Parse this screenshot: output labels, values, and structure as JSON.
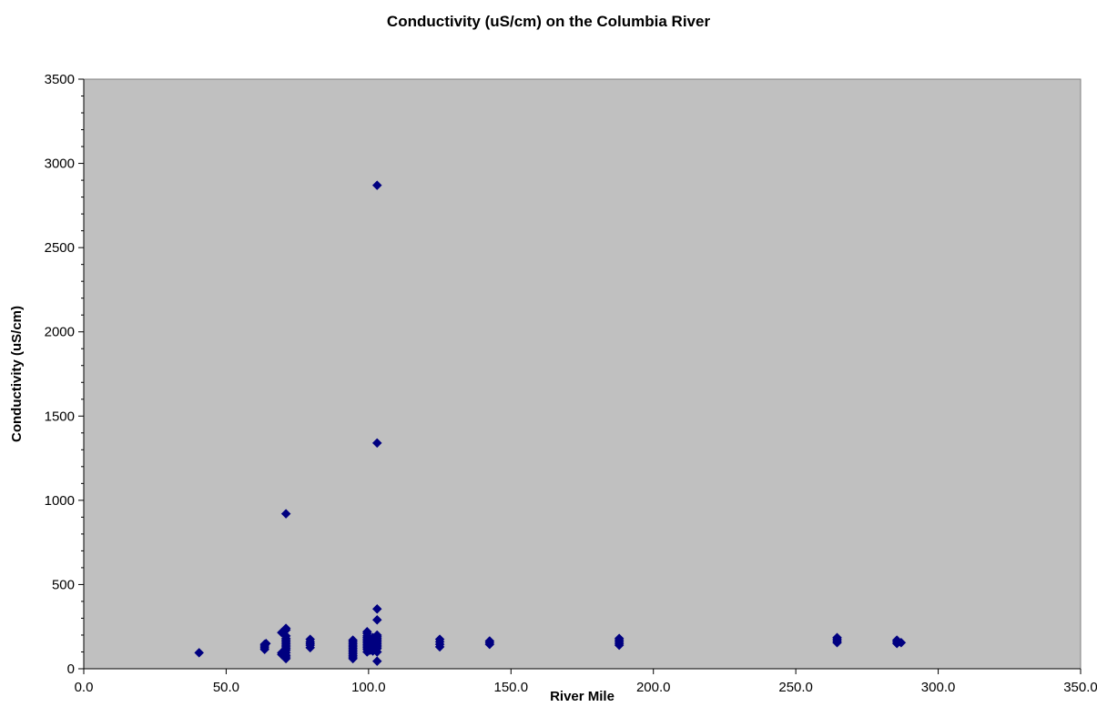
{
  "chart_data": {
    "type": "scatter",
    "title": "Conductivity (uS/cm) on the Columbia River",
    "xlabel": "River Mile",
    "ylabel": "Conductivity (uS/cm)",
    "xlim": [
      0,
      350
    ],
    "ylim": [
      0,
      3500
    ],
    "x_ticks": [
      "0.0",
      "50.0",
      "100.0",
      "150.0",
      "200.0",
      "250.0",
      "300.0",
      "350.0"
    ],
    "y_ticks": [
      "0",
      "500",
      "1000",
      "1500",
      "2000",
      "2500",
      "3000",
      "3500"
    ],
    "grid": false,
    "legend": "none",
    "colors": {
      "plot_background": "#c0c0c0",
      "marker": "#000080"
    },
    "series": [
      {
        "points": [
          [
            40.5,
            95
          ],
          [
            63.5,
            115
          ],
          [
            63.5,
            125
          ],
          [
            63.5,
            135
          ],
          [
            63.5,
            145
          ],
          [
            64,
            150
          ],
          [
            69.5,
            85
          ],
          [
            69.5,
            95
          ],
          [
            69.5,
            215
          ],
          [
            70.5,
            80
          ],
          [
            70.5,
            90
          ],
          [
            70.5,
            100
          ],
          [
            71,
            60
          ],
          [
            71,
            70
          ],
          [
            71,
            80
          ],
          [
            71,
            95
          ],
          [
            71,
            110
          ],
          [
            71,
            120
          ],
          [
            71,
            130
          ],
          [
            71,
            140
          ],
          [
            71,
            150
          ],
          [
            71,
            160
          ],
          [
            71,
            170
          ],
          [
            71,
            180
          ],
          [
            71,
            195
          ],
          [
            71,
            230
          ],
          [
            71,
            240
          ],
          [
            71,
            920
          ],
          [
            79.5,
            125
          ],
          [
            79.5,
            140
          ],
          [
            79.5,
            150
          ],
          [
            79.5,
            160
          ],
          [
            79.5,
            175
          ],
          [
            94.5,
            60
          ],
          [
            94.5,
            70
          ],
          [
            94.5,
            80
          ],
          [
            94.5,
            90
          ],
          [
            94.5,
            100
          ],
          [
            94.5,
            110
          ],
          [
            94.5,
            120
          ],
          [
            94.5,
            130
          ],
          [
            94.5,
            140
          ],
          [
            94.5,
            150
          ],
          [
            94.5,
            160
          ],
          [
            94.5,
            170
          ],
          [
            99.5,
            100
          ],
          [
            99.5,
            115
          ],
          [
            99.5,
            125
          ],
          [
            99.5,
            135
          ],
          [
            99.5,
            145
          ],
          [
            99.5,
            155
          ],
          [
            99.5,
            165
          ],
          [
            99.5,
            175
          ],
          [
            99.5,
            185
          ],
          [
            99.5,
            195
          ],
          [
            99.5,
            210
          ],
          [
            99.5,
            220
          ],
          [
            100.5,
            110
          ],
          [
            100.5,
            130
          ],
          [
            100.5,
            150
          ],
          [
            100.5,
            170
          ],
          [
            101.5,
            105
          ],
          [
            101.5,
            125
          ],
          [
            101.5,
            145
          ],
          [
            101.5,
            165
          ],
          [
            101.5,
            185
          ],
          [
            103,
            45
          ],
          [
            103,
            100
          ],
          [
            103,
            120
          ],
          [
            103,
            130
          ],
          [
            103,
            140
          ],
          [
            103,
            150
          ],
          [
            103,
            160
          ],
          [
            103,
            170
          ],
          [
            103,
            180
          ],
          [
            103,
            190
          ],
          [
            103,
            200
          ],
          [
            103,
            290
          ],
          [
            103,
            355
          ],
          [
            103,
            1340
          ],
          [
            103,
            2870
          ],
          [
            125,
            130
          ],
          [
            125,
            145
          ],
          [
            125,
            160
          ],
          [
            125,
            175
          ],
          [
            142.5,
            145
          ],
          [
            142.5,
            155
          ],
          [
            142.5,
            165
          ],
          [
            188,
            140
          ],
          [
            188,
            150
          ],
          [
            188,
            160
          ],
          [
            188,
            170
          ],
          [
            188,
            180
          ],
          [
            264.5,
            155
          ],
          [
            264.5,
            165
          ],
          [
            264.5,
            175
          ],
          [
            264.5,
            185
          ],
          [
            285.5,
            150
          ],
          [
            285.5,
            160
          ],
          [
            285.5,
            170
          ],
          [
            287,
            155
          ]
        ]
      }
    ]
  }
}
